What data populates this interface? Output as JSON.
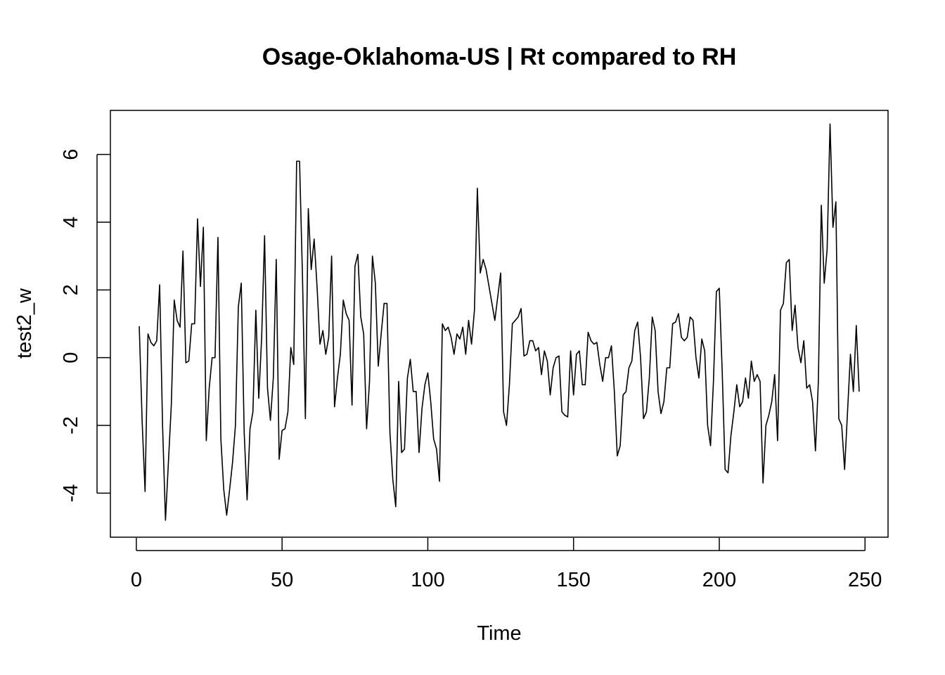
{
  "chart_data": {
    "type": "line",
    "title": "Osage-Oklahoma-US | Rt compared to RH",
    "xlabel": "Time",
    "ylabel": "test2_w",
    "xlim": [
      -8.9,
      257.9
    ],
    "ylim": [
      -5.3,
      7.3
    ],
    "x_ticks": [
      0,
      50,
      100,
      150,
      200,
      250
    ],
    "y_ticks": [
      -4,
      -2,
      0,
      2,
      4,
      6
    ],
    "grid": false,
    "legend": "none",
    "line_color": "#000000",
    "x": [
      1,
      2,
      3,
      4,
      5,
      6,
      7,
      8,
      9,
      10,
      11,
      12,
      13,
      14,
      15,
      16,
      17,
      18,
      19,
      20,
      21,
      22,
      23,
      24,
      25,
      26,
      27,
      28,
      29,
      30,
      31,
      32,
      33,
      34,
      35,
      36,
      37,
      38,
      39,
      40,
      41,
      42,
      43,
      44,
      45,
      46,
      47,
      48,
      49,
      50,
      51,
      52,
      53,
      54,
      55,
      56,
      57,
      58,
      59,
      60,
      61,
      62,
      63,
      64,
      65,
      66,
      67,
      68,
      69,
      70,
      71,
      72,
      73,
      74,
      75,
      76,
      77,
      78,
      79,
      80,
      81,
      82,
      83,
      84,
      85,
      86,
      87,
      88,
      89,
      90,
      91,
      92,
      93,
      94,
      95,
      96,
      97,
      98,
      99,
      100,
      101,
      102,
      103,
      104,
      105,
      106,
      107,
      108,
      109,
      110,
      111,
      112,
      113,
      114,
      115,
      116,
      117,
      118,
      119,
      120,
      121,
      122,
      123,
      124,
      125,
      126,
      127,
      128,
      129,
      130,
      131,
      132,
      133,
      134,
      135,
      136,
      137,
      138,
      139,
      140,
      141,
      142,
      143,
      144,
      145,
      146,
      147,
      148,
      149,
      150,
      151,
      152,
      153,
      154,
      155,
      156,
      157,
      158,
      159,
      160,
      161,
      162,
      163,
      164,
      165,
      166,
      167,
      168,
      169,
      170,
      171,
      172,
      173,
      174,
      175,
      176,
      177,
      178,
      179,
      180,
      181,
      182,
      183,
      184,
      185,
      186,
      187,
      188,
      189,
      190,
      191,
      192,
      193,
      194,
      195,
      196,
      197,
      198,
      199,
      200,
      201,
      202,
      203,
      204,
      205,
      206,
      207,
      208,
      209,
      210,
      211,
      212,
      213,
      214,
      215,
      216,
      217,
      218,
      219,
      220,
      221,
      222,
      223,
      224,
      225,
      226,
      227,
      228,
      229,
      230,
      231,
      232,
      233,
      234,
      235,
      236,
      237,
      238,
      239,
      240,
      241,
      242,
      243,
      244,
      245,
      246,
      247,
      248
    ],
    "values": [
      0.93,
      -1.9,
      -3.95,
      0.7,
      0.45,
      0.35,
      0.5,
      2.15,
      -2.0,
      -4.8,
      -3.1,
      -1.4,
      1.7,
      1.1,
      0.9,
      3.15,
      -0.15,
      -0.1,
      1.0,
      1.0,
      4.1,
      2.1,
      3.85,
      -2.45,
      -0.9,
      0.0,
      0.0,
      3.55,
      -2.4,
      -3.9,
      -4.65,
      -3.9,
      -3.1,
      -2.0,
      1.5,
      2.2,
      -2.2,
      -4.2,
      -2.1,
      -1.6,
      1.4,
      -1.2,
      0.6,
      3.6,
      -0.9,
      -1.85,
      -0.6,
      2.9,
      -3.0,
      -2.15,
      -2.1,
      -1.6,
      0.3,
      -0.2,
      5.8,
      5.8,
      2.4,
      -1.8,
      4.4,
      2.6,
      3.5,
      2.1,
      0.4,
      0.8,
      0.1,
      0.6,
      3.0,
      -1.45,
      -0.6,
      0.1,
      1.7,
      1.3,
      1.1,
      -1.4,
      2.7,
      3.05,
      1.2,
      0.7,
      -2.1,
      -0.7,
      3.0,
      2.2,
      -0.25,
      0.7,
      1.6,
      1.6,
      -2.2,
      -3.6,
      -4.4,
      -0.7,
      -2.8,
      -2.7,
      -0.6,
      -0.05,
      -1.0,
      -1.0,
      -2.8,
      -1.5,
      -0.8,
      -0.45,
      -1.3,
      -2.4,
      -2.7,
      -3.65,
      1.0,
      0.8,
      0.9,
      0.6,
      0.1,
      0.7,
      0.55,
      0.9,
      0.1,
      1.1,
      0.4,
      1.4,
      5.0,
      2.5,
      2.9,
      2.6,
      2.1,
      1.6,
      1.1,
      1.8,
      2.5,
      -1.6,
      -2.0,
      -0.8,
      1.0,
      1.1,
      1.2,
      1.45,
      0.05,
      0.1,
      0.5,
      0.5,
      0.2,
      0.3,
      -0.5,
      0.2,
      -0.1,
      -1.1,
      -0.3,
      0.0,
      0.05,
      -1.6,
      -1.7,
      -1.75,
      0.2,
      -1.1,
      0.1,
      0.2,
      -0.8,
      -0.8,
      0.75,
      0.5,
      0.4,
      0.45,
      -0.2,
      -0.7,
      0.0,
      0.0,
      0.35,
      -1.0,
      -2.9,
      -2.6,
      -1.1,
      -1.0,
      -0.3,
      -0.1,
      0.8,
      1.05,
      0.0,
      -1.8,
      -1.6,
      -0.6,
      1.2,
      0.8,
      -1.0,
      -1.65,
      -1.3,
      -0.3,
      -0.3,
      1.0,
      1.05,
      1.3,
      0.6,
      0.5,
      0.6,
      1.2,
      1.1,
      0.0,
      -0.6,
      0.55,
      0.2,
      -2.0,
      -2.6,
      -0.7,
      1.95,
      2.05,
      -0.4,
      -3.3,
      -3.4,
      -2.3,
      -1.6,
      -0.8,
      -1.45,
      -1.3,
      -0.6,
      -1.2,
      -0.1,
      -0.7,
      -0.5,
      -0.7,
      -3.7,
      -2.0,
      -1.7,
      -1.3,
      -0.5,
      -2.45,
      1.4,
      1.6,
      2.8,
      2.9,
      0.8,
      1.55,
      0.3,
      -0.15,
      0.5,
      -0.9,
      -0.8,
      -1.3,
      -2.75,
      -0.7,
      4.5,
      2.2,
      3.2,
      6.9,
      3.85,
      4.6,
      -1.8,
      -2.0,
      -3.3,
      -1.6,
      0.1,
      -1.0,
      0.95,
      -1.0
    ]
  }
}
